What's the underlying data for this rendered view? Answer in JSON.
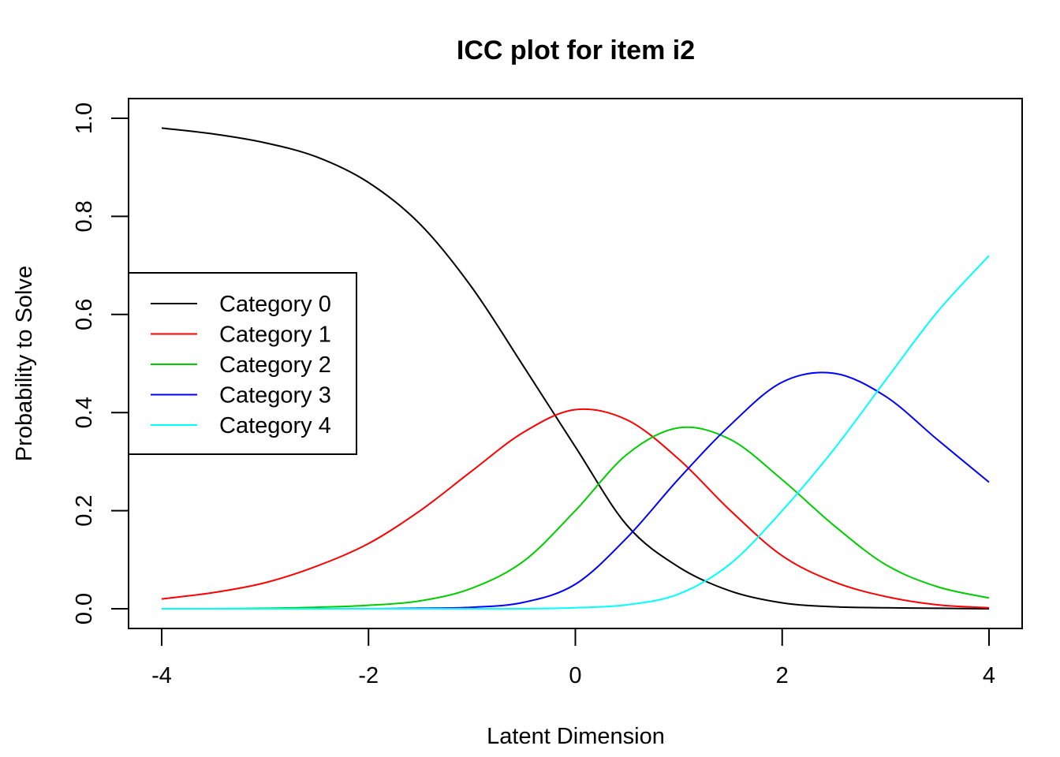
{
  "chart_data": {
    "type": "line",
    "title": "ICC plot for item i2",
    "xlabel": "Latent Dimension",
    "ylabel": "Probability to Solve",
    "xlim": [
      -4,
      4
    ],
    "ylim": [
      0,
      1
    ],
    "xticks": [
      -4,
      -2,
      0,
      2,
      4
    ],
    "yticks": [
      0.0,
      0.2,
      0.4,
      0.6,
      0.8,
      1.0
    ],
    "xtick_labels": [
      "-4",
      "-2",
      "0",
      "2",
      "4"
    ],
    "ytick_labels": [
      "0.0",
      "0.2",
      "0.4",
      "0.6",
      "0.8",
      "1.0"
    ],
    "grid": false,
    "legend_position": "left",
    "x": [
      -4,
      -3.5,
      -3,
      -2.5,
      -2,
      -1.5,
      -1,
      -0.5,
      0,
      0.5,
      1,
      1.5,
      2,
      2.5,
      3,
      3.5,
      4
    ],
    "series": [
      {
        "name": "Category 0",
        "color": "#000000",
        "values": [
          0.98,
          0.968,
          0.95,
          0.921,
          0.869,
          0.784,
          0.655,
          0.494,
          0.33,
          0.17,
          0.085,
          0.036,
          0.012,
          0.004,
          0.002,
          0.001,
          0.0
        ]
      },
      {
        "name": "Category 1",
        "color": "#ff0000",
        "values": [
          0.02,
          0.033,
          0.053,
          0.087,
          0.133,
          0.2,
          0.281,
          0.36,
          0.406,
          0.385,
          0.305,
          0.2,
          0.108,
          0.055,
          0.025,
          0.008,
          0.002
        ]
      },
      {
        "name": "Category 2",
        "color": "#00cd00",
        "values": [
          0.0,
          0.0,
          0.001,
          0.003,
          0.007,
          0.016,
          0.042,
          0.097,
          0.2,
          0.315,
          0.369,
          0.345,
          0.263,
          0.17,
          0.09,
          0.045,
          0.022
        ]
      },
      {
        "name": "Category 3",
        "color": "#0000ff",
        "values": [
          0.0,
          0.0,
          0.0,
          0.0,
          0.0,
          0.001,
          0.003,
          0.013,
          0.05,
          0.145,
          0.265,
          0.375,
          0.462,
          0.48,
          0.433,
          0.345,
          0.258
        ]
      },
      {
        "name": "Category 4",
        "color": "#00ffff",
        "values": [
          0.0,
          0.0,
          0.0,
          0.0,
          0.0,
          0.0,
          0.0,
          0.0,
          0.002,
          0.008,
          0.03,
          0.092,
          0.2,
          0.325,
          0.466,
          0.605,
          0.72
        ]
      }
    ]
  }
}
